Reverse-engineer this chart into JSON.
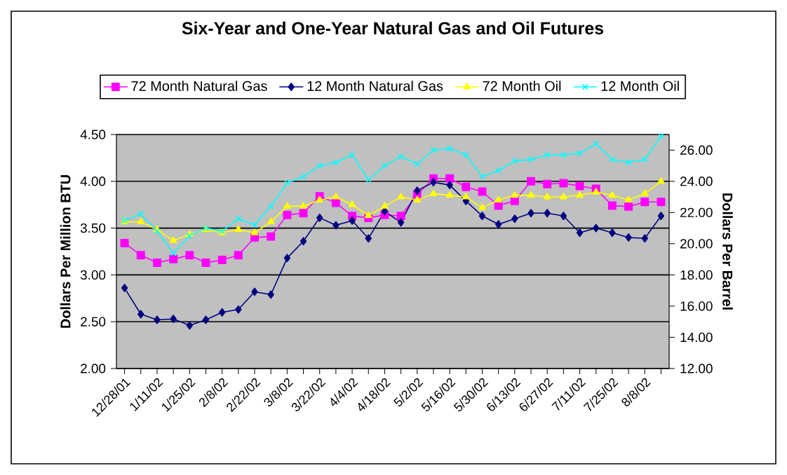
{
  "chart_data": {
    "type": "line",
    "title": "Six-Year and One-Year Natural Gas and Oil Futures",
    "ylabel": "Dollars Per Million BTU",
    "y2label": "Dollars Per Barrel",
    "categories": [
      "12/28/01",
      null,
      "1/11/02",
      null,
      "1/25/02",
      null,
      "2/8/02",
      null,
      "2/22/02",
      null,
      "3/8/02",
      null,
      "3/22/02",
      null,
      "4/4/02",
      null,
      "4/18/02",
      null,
      "5/2/02",
      null,
      "5/16/02",
      null,
      "5/30/02",
      null,
      "6/13/02",
      null,
      "6/27/02",
      null,
      "7/11/02",
      null,
      "7/25/02",
      null,
      "8/8/02",
      null
    ],
    "series": [
      {
        "name": "72 Month Natural Gas",
        "color": "#ff00ff",
        "marker": "square",
        "values": [
          3.34,
          3.21,
          3.13,
          3.17,
          3.21,
          3.13,
          3.16,
          3.21,
          3.4,
          3.41,
          3.64,
          3.66,
          3.84,
          3.77,
          3.63,
          3.61,
          3.64,
          3.63,
          3.86,
          4.03,
          4.03,
          3.94,
          3.89,
          3.74,
          3.79,
          4.0,
          3.97,
          3.98,
          3.95,
          3.92,
          3.74,
          3.73,
          3.78,
          3.78
        ]
      },
      {
        "name": "12 Month Natural Gas",
        "color": "#000080",
        "marker": "diamond",
        "values": [
          2.86,
          2.58,
          2.52,
          2.53,
          2.46,
          2.52,
          2.6,
          2.63,
          2.82,
          2.79,
          3.18,
          3.36,
          3.61,
          3.53,
          3.58,
          3.39,
          3.68,
          3.56,
          3.9,
          3.99,
          3.96,
          3.79,
          3.63,
          3.54,
          3.6,
          3.66,
          3.66,
          3.63,
          3.45,
          3.5,
          3.45,
          3.4,
          3.39,
          3.63
        ]
      },
      {
        "name": "72 Month Oil",
        "color": "#ffff00",
        "marker": "triangle",
        "axis": "y2",
        "values": [
          21.4,
          21.4,
          20.9,
          20.2,
          20.6,
          20.9,
          20.7,
          20.9,
          20.7,
          21.4,
          22.4,
          22.4,
          22.8,
          23.0,
          22.5,
          21.8,
          22.4,
          23.0,
          22.8,
          23.2,
          23.1,
          23.0,
          22.3,
          22.8,
          23.1,
          23.1,
          23.0,
          23.0,
          23.1,
          23.3,
          23.1,
          22.8,
          23.2,
          24.0
        ]
      },
      {
        "name": "12 Month Oil",
        "color": "#00ffff",
        "marker": "cross",
        "axis": "y2",
        "values": [
          21.5,
          21.9,
          20.8,
          19.4,
          20.5,
          21.0,
          20.8,
          21.6,
          21.2,
          22.4,
          23.9,
          24.3,
          25.0,
          25.2,
          25.7,
          24.1,
          25.0,
          25.6,
          25.1,
          26.0,
          26.1,
          25.7,
          24.3,
          24.7,
          25.3,
          25.4,
          25.7,
          25.7,
          25.8,
          26.4,
          25.4,
          25.2,
          25.4,
          26.9
        ]
      }
    ],
    "ylim": [
      2,
      4.5
    ],
    "yticks": [
      {
        "value": 2,
        "label": "2.00"
      },
      {
        "value": 2.5,
        "label": "2.50"
      },
      {
        "value": 3,
        "label": "3.00"
      },
      {
        "value": 3.5,
        "label": "3.50"
      },
      {
        "value": 4,
        "label": "4.00"
      },
      {
        "value": 4.5,
        "label": "4.50"
      }
    ],
    "y2lim": [
      12,
      27
    ],
    "y2ticks": [
      {
        "value": 12,
        "label": "12.00"
      },
      {
        "value": 14,
        "label": "14.00"
      },
      {
        "value": 16,
        "label": "16.00"
      },
      {
        "value": 18,
        "label": "18.00"
      },
      {
        "value": 20,
        "label": "20.00"
      },
      {
        "value": 22,
        "label": "22.00"
      },
      {
        "value": 24,
        "label": "24.00"
      },
      {
        "value": 26,
        "label": "26.00"
      }
    ],
    "grid": "y",
    "legend": "top"
  }
}
